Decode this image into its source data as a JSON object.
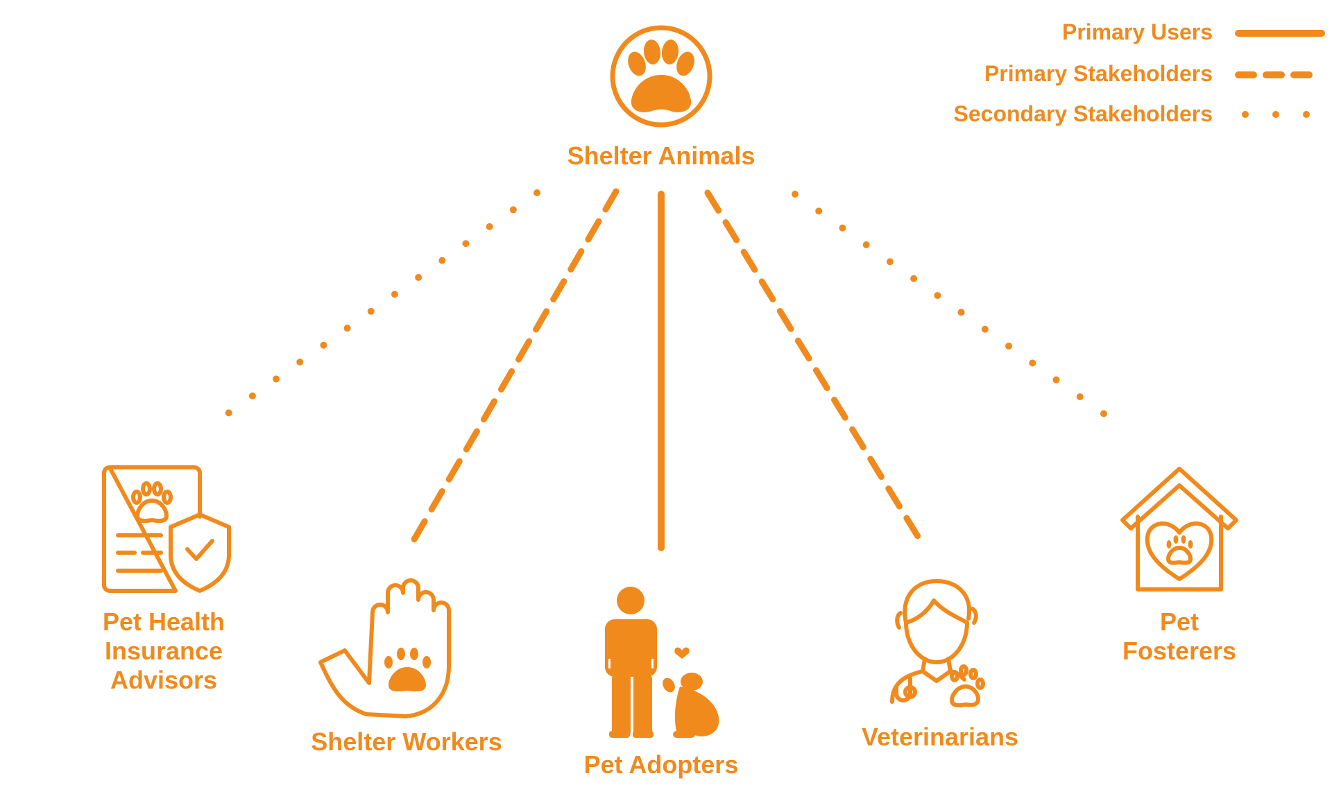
{
  "accent_color": "#F08A1D",
  "legend": {
    "primary_users": "Primary Users",
    "primary_stakeholders": "Primary Stakeholders",
    "secondary_stakeholders": "Secondary Stakeholders"
  },
  "center": {
    "label": "Shelter Animals",
    "icon": "paw-print-icon"
  },
  "nodes": {
    "insurance": {
      "line1": "Pet Health",
      "line2": "Insurance",
      "line3": "Advisors",
      "icon": "insurance-document-shield-icon",
      "relation": "secondary"
    },
    "workers": {
      "label": "Shelter Workers",
      "icon": "hand-paw-icon",
      "relation": "primary-stakeholder"
    },
    "adopters": {
      "label": "Pet Adopters",
      "icon": "person-with-dog-icon",
      "relation": "primary-user"
    },
    "vets": {
      "label": "Veterinarians",
      "icon": "veterinarian-icon",
      "relation": "primary-stakeholder"
    },
    "fosterers": {
      "line1": "Pet",
      "line2": "Fosterers",
      "icon": "pet-house-heart-icon",
      "relation": "secondary"
    }
  }
}
